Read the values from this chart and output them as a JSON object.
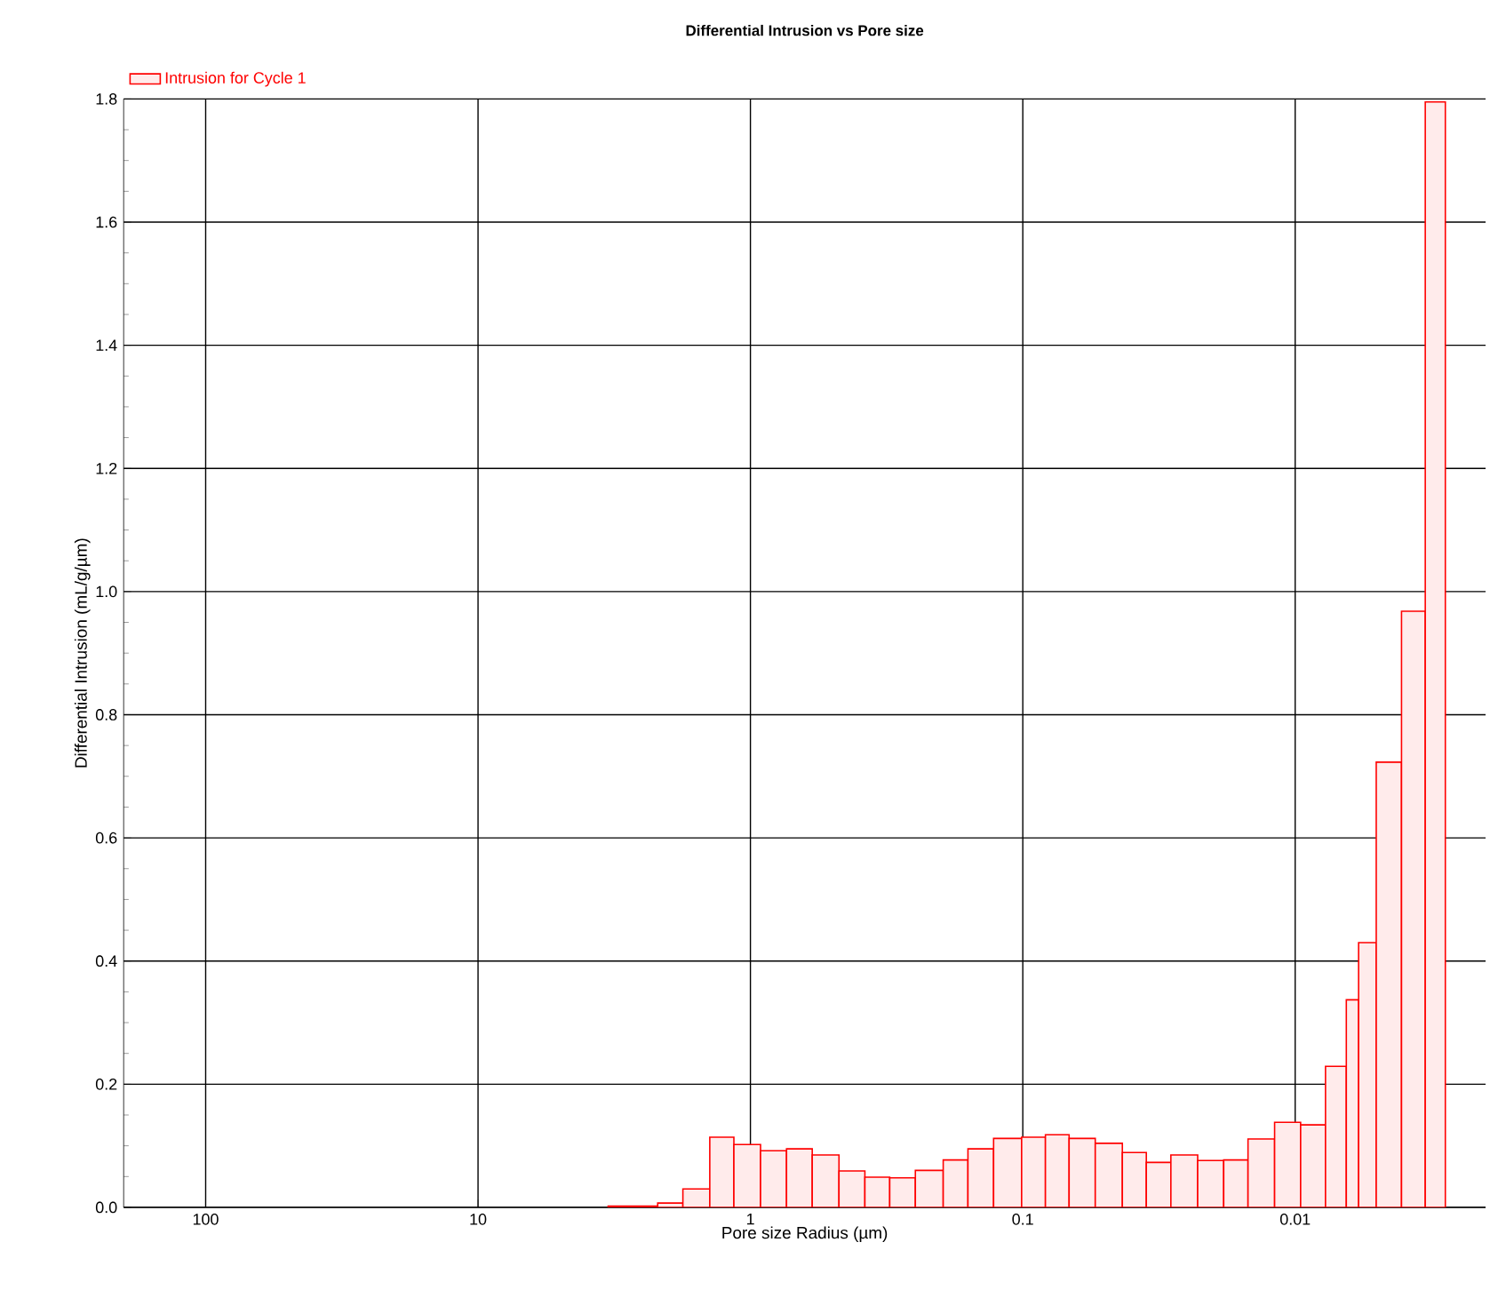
{
  "chart_data": {
    "type": "histogram",
    "title": "Differential Intrusion vs Pore size",
    "xlabel": "Pore size Radius (µm)",
    "ylabel": "Differential Intrusion (mL/g/µm)",
    "bins": [
      3.33,
      2.19,
      1.77,
      1.41,
      1.15,
      0.918,
      0.737,
      0.593,
      0.473,
      0.38,
      0.308,
      0.248,
      0.196,
      0.159,
      0.128,
      0.101,
      0.0826,
      0.0676,
      0.0542,
      0.0431,
      0.0352,
      0.0286,
      0.0228,
      0.0183,
      0.0149,
      0.0119,
      0.00955,
      0.00774,
      0.00649,
      0.00585,
      0.00504,
      0.00407,
      0.00333,
      0.00281
    ],
    "series": [
      {
        "name": "Intrusion for Cycle 1",
        "color": "#ff0000",
        "values": [
          0.002,
          0.007,
          0.03,
          0.114,
          0.102,
          0.092,
          0.095,
          0.085,
          0.059,
          0.049,
          0.048,
          0.06,
          0.077,
          0.095,
          0.112,
          0.114,
          0.118,
          0.112,
          0.104,
          0.089,
          0.073,
          0.085,
          0.076,
          0.077,
          0.111,
          0.138,
          0.134,
          0.229,
          0.337,
          0.43,
          0.723,
          0.968,
          1.795
        ]
      }
    ],
    "log": "x",
    "xlim": [
      200,
      0.002
    ],
    "xticks": [
      100,
      10,
      1,
      0.1,
      0.01
    ],
    "ylim": [
      0,
      1.8
    ],
    "yticks": [
      {
        "value": 0,
        "label": "0.0"
      },
      0.2,
      0.4,
      0.6,
      0.8,
      {
        "value": 1,
        "label": "1.0"
      },
      1.2,
      1.4,
      1.6,
      1.8
    ],
    "grid": true,
    "legend": "top left"
  }
}
